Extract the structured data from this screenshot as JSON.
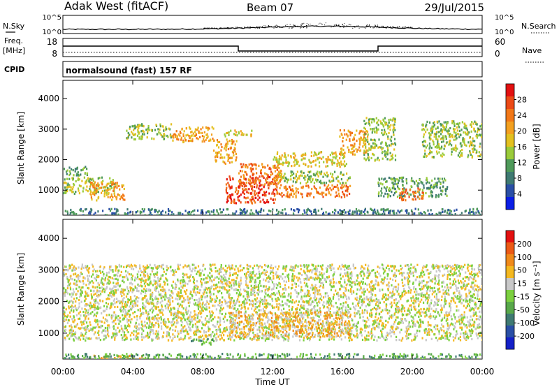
{
  "header": {
    "station": "Adak West (fitACF)",
    "beam": "Beam 07",
    "date": "29/Jul/2015"
  },
  "top_panel": {
    "left_label": "N.Sky",
    "right_label": "N.Search",
    "left_ticks": [
      "10^5",
      "10^0"
    ],
    "right_ticks": [
      "10^5",
      "10^0"
    ]
  },
  "freq_panel": {
    "left_label_1": "Freq.",
    "left_label_2": "[MHz]",
    "right_label": "Nave",
    "left_ticks": [
      "18",
      "8"
    ],
    "right_ticks": [
      "60",
      "0"
    ]
  },
  "cpid": {
    "label": "CPID",
    "text": "normalsound (fast) 157 RF"
  },
  "chart_data": [
    {
      "type": "heatmap",
      "quantity": "Power",
      "ylabel": "Slant Range [km]",
      "xlabel": "Time UT",
      "ylim": [
        180,
        4600
      ],
      "xlim_hours": [
        0,
        24
      ],
      "x_ticks": [
        "00:00",
        "04:00",
        "08:00",
        "12:00",
        "16:00",
        "20:00",
        "00:00"
      ],
      "y_ticks": [
        1000,
        2000,
        3000,
        4000
      ],
      "colorbar": {
        "label": "Power [dB]",
        "ticks": [
          "4",
          "8",
          "12",
          "16",
          "20",
          "24",
          "28"
        ],
        "colors": [
          "#0a1ee6",
          "#2a4fa6",
          "#3f7a72",
          "#4f9a5a",
          "#9acb3a",
          "#e3c020",
          "#f3a020",
          "#f27818",
          "#ec4a16",
          "#e31010"
        ]
      },
      "regions": [
        {
          "t0": 0.0,
          "t1": 1.4,
          "r0": 1500,
          "r1": 1800,
          "level": 3
        },
        {
          "t0": 0.0,
          "t1": 3.0,
          "r0": 900,
          "r1": 1450,
          "level": 4
        },
        {
          "t0": 1.5,
          "t1": 3.5,
          "r0": 700,
          "r1": 1300,
          "level": 6
        },
        {
          "t0": 3.6,
          "t1": 6.2,
          "r0": 2700,
          "r1": 3200,
          "level": 4
        },
        {
          "t0": 6.2,
          "t1": 8.6,
          "r0": 2600,
          "r1": 3100,
          "level": 6
        },
        {
          "t0": 8.6,
          "t1": 9.9,
          "r0": 1900,
          "r1": 2700,
          "level": 6
        },
        {
          "t0": 9.2,
          "t1": 10.8,
          "r0": 2800,
          "r1": 3000,
          "level": 5
        },
        {
          "t0": 9.3,
          "t1": 12.2,
          "r0": 600,
          "r1": 1500,
          "level": 8
        },
        {
          "t0": 10.0,
          "t1": 12.5,
          "r0": 1200,
          "r1": 1900,
          "level": 7
        },
        {
          "t0": 12.0,
          "t1": 16.2,
          "r0": 1800,
          "r1": 2300,
          "level": 5
        },
        {
          "t0": 12.2,
          "t1": 16.4,
          "r0": 800,
          "r1": 1200,
          "level": 7
        },
        {
          "t0": 12.2,
          "t1": 16.4,
          "r0": 1250,
          "r1": 1650,
          "level": 4
        },
        {
          "t0": 15.8,
          "t1": 17.4,
          "r0": 2200,
          "r1": 3000,
          "level": 6
        },
        {
          "t0": 17.2,
          "t1": 19.0,
          "r0": 2000,
          "r1": 3400,
          "level": 4
        },
        {
          "t0": 18.0,
          "t1": 22.0,
          "r0": 800,
          "r1": 1450,
          "level": 3
        },
        {
          "t0": 19.2,
          "t1": 20.6,
          "r0": 700,
          "r1": 1100,
          "level": 7
        },
        {
          "t0": 20.5,
          "t1": 24.0,
          "r0": 2100,
          "r1": 3300,
          "level": 4
        },
        {
          "t0": 0.0,
          "t1": 24.0,
          "r0": 180,
          "r1": 420,
          "level": 2
        }
      ]
    },
    {
      "type": "heatmap",
      "quantity": "Velocity",
      "ylabel": "Slant Range [km]",
      "xlabel": "Time UT",
      "ylim": [
        180,
        4600
      ],
      "xlim_hours": [
        0,
        24
      ],
      "x_ticks": [
        "00:00",
        "04:00",
        "08:00",
        "12:00",
        "16:00",
        "20:00",
        "00:00"
      ],
      "y_ticks": [
        1000,
        2000,
        3000,
        4000
      ],
      "colorbar": {
        "label": "Velocity [m s⁻¹]",
        "ticks": [
          "200",
          "100",
          "50",
          "15",
          "-15",
          "-50",
          "-100",
          "-200"
        ],
        "colors": [
          "#1420c8",
          "#2a4fa6",
          "#3f7a72",
          "#58a84a",
          "#7cd040",
          "#c8c8c8",
          "#f4b820",
          "#f08a1a",
          "#ec5a16",
          "#e31010"
        ]
      },
      "regions": [
        {
          "t0": 0.0,
          "t1": 24.0,
          "r0": 800,
          "r1": 3200,
          "level": 5
        },
        {
          "t0": 9.5,
          "t1": 16.4,
          "r0": 900,
          "r1": 1700,
          "level": 6
        },
        {
          "t0": 7.3,
          "t1": 8.6,
          "r0": 650,
          "r1": 850,
          "level": 3
        },
        {
          "t0": 1.5,
          "t1": 4.5,
          "r0": 180,
          "r1": 320,
          "level": 6
        },
        {
          "t0": 0.0,
          "t1": 24.0,
          "r0": 180,
          "r1": 380,
          "level": 3
        }
      ]
    }
  ],
  "axis": {
    "xlabel": "Time UT"
  }
}
